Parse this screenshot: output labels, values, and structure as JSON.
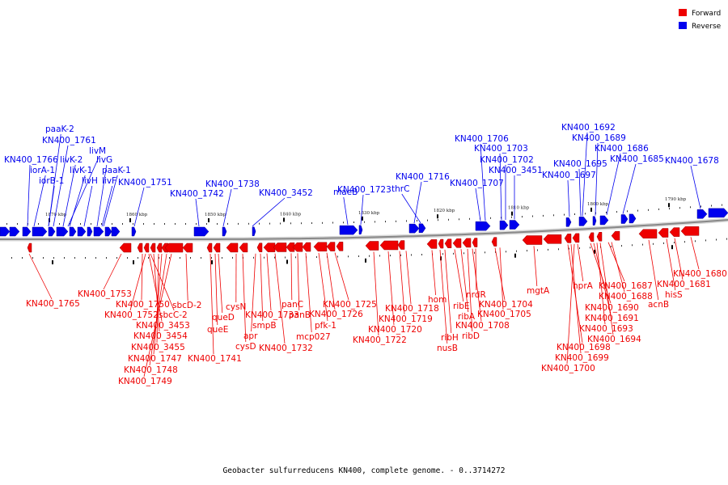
{
  "caption": "Geobacter sulfurreducens KN400, complete genome. - 0..3714272",
  "colors": {
    "forward": "#ee0000",
    "reverse": "#0000ee",
    "backbone": "#888888"
  },
  "legend": [
    {
      "label": "Forward",
      "color": "#ee0000"
    },
    {
      "label": "Reverse",
      "color": "#0000ee"
    }
  ],
  "kbp_ticks": [
    "1870 kbp",
    "1860 kbp",
    "1850 kbp",
    "1840 kbp",
    "1830 kbp",
    "1820 kbp",
    "1810 kbp",
    "1800 kbp",
    "1790 kbp"
  ],
  "reverse_labels": [
    "paaK-2",
    "KN400_1761",
    "livM",
    "KN400_1766",
    "livK-2",
    "livG",
    "iorA-1",
    "livK-1",
    "paaK-1",
    "iorB-1",
    "livH",
    "livF",
    "KN400_1751",
    "KN400_1742",
    "KN400_1738",
    "KN400_3452",
    "maeB",
    "KN400_1723",
    "KN400_1716",
    "thrC",
    "KN400_1707",
    "KN400_1706",
    "KN400_1703",
    "KN400_1702",
    "KN400_3451",
    "KN400_1692",
    "KN400_1689",
    "KN400_1686",
    "KN400_1685",
    "KN400_1678",
    "KN400_1697",
    "KN400_1695"
  ],
  "forward_labels": [
    "KN400_1765",
    "KN400_1753",
    "KN400_1750",
    "KN400_1752",
    "sbcC-2",
    "sbcD-2",
    "KN400_3453",
    "KN400_3454",
    "KN400_3455",
    "KN400_1747",
    "KN400_1748",
    "KN400_1749",
    "KN400_1741",
    "queE",
    "queD",
    "cysN",
    "cysD",
    "apr",
    "smpB",
    "KN400_1733",
    "KN400_1732",
    "panC",
    "panB",
    "mcp027",
    "pfk-1",
    "KN400_1726",
    "KN400_1725",
    "KN400_1722",
    "KN400_1720",
    "KN400_1719",
    "KN400_1718",
    "hom",
    "nusB",
    "ribH",
    "ribE",
    "ribA",
    "ribD",
    "nrdR",
    "KN400_1708",
    "KN400_1704",
    "KN400_1705",
    "mgtA",
    "hprA",
    "KN400_1687",
    "KN400_1688",
    "KN400_1690",
    "KN400_1691",
    "KN400_1693",
    "KN400_1694",
    "KN400_1698",
    "KN400_1699",
    "KN400_1700",
    "acnB",
    "hisS",
    "KN400_1681",
    "KN400_1680"
  ]
}
